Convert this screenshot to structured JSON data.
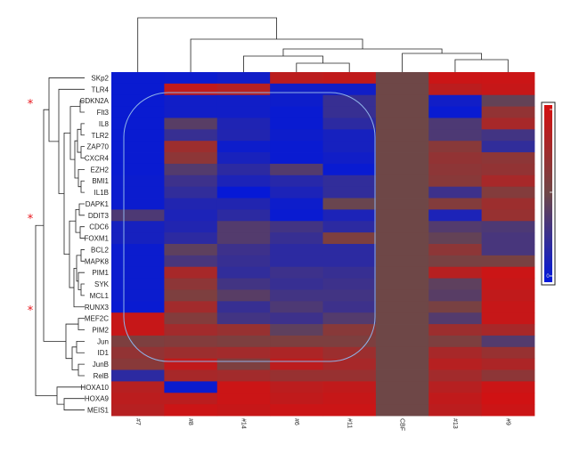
{
  "chart_data": {
    "type": "heatmap",
    "title": "",
    "xlabel": "",
    "ylabel": "",
    "columns": [
      "#7",
      "#8",
      "#14",
      "#6",
      "#11",
      "CBF",
      "#13",
      "#9"
    ],
    "rows": [
      "SKp2",
      "TLR4",
      "CDKN2A",
      "Flt3",
      "IL8",
      "TLR2",
      "ZAP70",
      "CXCR4",
      "EZH2",
      "BMI1",
      "IL1B",
      "DAPK1",
      "DDIT3",
      "CDC6",
      "FOXM1",
      "BCL2",
      "MAPK8",
      "PIM1",
      "SYK",
      "MCL1",
      "RUNX3",
      "MEF2C",
      "PIM2",
      "Jun",
      "ID1",
      "JunB",
      "RelB",
      "HOXA10",
      "HOXA9",
      "MEIS1"
    ],
    "value_range": [
      -1,
      1
    ],
    "values": [
      [
        -0.92,
        -0.9,
        -0.85,
        0.75,
        0.8,
        0,
        0.9,
        0.9
      ],
      [
        -0.92,
        0.8,
        0.7,
        -0.85,
        -0.85,
        0,
        0.75,
        0.85
      ],
      [
        -0.92,
        -0.85,
        -0.85,
        -0.88,
        -0.5,
        0,
        -0.85,
        -0.1
      ],
      [
        -0.92,
        -0.85,
        -0.85,
        -0.92,
        -0.5,
        0,
        -0.92,
        0.35
      ],
      [
        -0.92,
        -0.2,
        -0.72,
        -0.92,
        -0.6,
        0,
        -0.3,
        0.55
      ],
      [
        -0.92,
        -0.5,
        -0.7,
        -0.88,
        -0.8,
        0,
        -0.3,
        -0.4
      ],
      [
        -0.92,
        0.45,
        -0.88,
        -0.92,
        -0.8,
        0,
        0.25,
        -0.55
      ],
      [
        -0.92,
        0.3,
        -0.78,
        -0.92,
        -0.85,
        0,
        0.35,
        0.3
      ],
      [
        -0.92,
        -0.25,
        -0.6,
        -0.25,
        -0.92,
        0,
        0.3,
        0.35
      ],
      [
        -0.9,
        -0.45,
        -0.75,
        -0.65,
        -0.55,
        0,
        0.25,
        0.55
      ],
      [
        -0.9,
        -0.55,
        -0.95,
        -0.75,
        -0.55,
        0,
        -0.45,
        0.2
      ],
      [
        -0.9,
        -0.7,
        -0.7,
        -0.88,
        -0.05,
        0,
        0.2,
        0.45
      ],
      [
        -0.3,
        -0.75,
        -0.6,
        -0.92,
        -0.75,
        0,
        -0.75,
        0.4
      ],
      [
        -0.8,
        -0.7,
        -0.25,
        -0.4,
        -0.6,
        0,
        -0.25,
        -0.3
      ],
      [
        -0.8,
        -0.6,
        -0.25,
        -0.5,
        0.15,
        0,
        -0.1,
        -0.35
      ],
      [
        -0.9,
        -0.15,
        -0.45,
        -0.6,
        -0.6,
        0,
        0.3,
        -0.35
      ],
      [
        -0.9,
        -0.35,
        -0.5,
        -0.6,
        -0.6,
        0,
        0.1,
        0.1
      ],
      [
        -0.9,
        0.55,
        -0.55,
        -0.45,
        -0.5,
        0,
        0.7,
        0.9
      ],
      [
        -0.9,
        0.3,
        -0.4,
        -0.5,
        -0.45,
        0,
        -0.15,
        0.85
      ],
      [
        -0.9,
        0.15,
        -0.2,
        -0.4,
        -0.4,
        0,
        -0.2,
        0.8
      ],
      [
        -0.92,
        0.5,
        -0.5,
        -0.3,
        -0.45,
        0,
        0.1,
        0.85
      ],
      [
        0.85,
        0.2,
        -0.4,
        -0.45,
        -0.25,
        0,
        -0.25,
        0.85
      ],
      [
        0.85,
        0.5,
        0.4,
        -0.15,
        0.25,
        0,
        0.45,
        0.55
      ],
      [
        0.15,
        0.2,
        0.15,
        0.15,
        0.15,
        0,
        0.15,
        -0.25
      ],
      [
        0.35,
        0.45,
        0.5,
        0.6,
        0.45,
        0,
        0.55,
        0.4
      ],
      [
        0.25,
        0.8,
        0.15,
        0.75,
        0.55,
        0,
        0.7,
        0.6
      ],
      [
        -0.6,
        0.55,
        0.5,
        0.4,
        0.4,
        0,
        0.5,
        0.3
      ],
      [
        0.7,
        -0.9,
        0.9,
        0.75,
        0.8,
        0,
        0.7,
        0.9
      ],
      [
        0.75,
        0.75,
        0.9,
        0.8,
        0.85,
        0,
        0.8,
        0.95
      ],
      [
        0.7,
        0.9,
        0.85,
        0.9,
        0.9,
        0,
        0.75,
        0.9
      ]
    ],
    "marked_rows": [
      "CDKN2A",
      "DDIT3",
      "RUNX3"
    ],
    "marker": "*",
    "row_dendrogram": true,
    "column_dendrogram": true,
    "colorbar": {
      "ticks": [
        "",
        "",
        "0"
      ]
    },
    "colors": {
      "low": "#0017dd",
      "mid": "#6e4747",
      "high": "#d50f10",
      "marker": "#e8141b",
      "highlight_outline": "#8fb3e8"
    }
  }
}
